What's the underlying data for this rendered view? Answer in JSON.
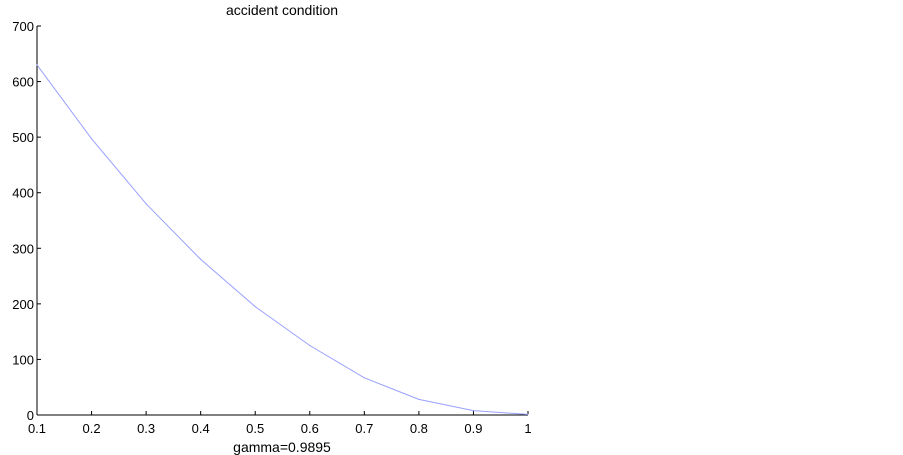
{
  "chart_data": {
    "type": "line",
    "title": "accident condition",
    "xlabel": "gamma=0.9895",
    "ylabel": "",
    "xlim": [
      0.1,
      1
    ],
    "ylim": [
      0,
      700
    ],
    "x_ticks": [
      "0.1",
      "0.2",
      "0.3",
      "0.4",
      "0.5",
      "0.6",
      "0.7",
      "0.8",
      "0.9",
      "1"
    ],
    "y_ticks": [
      "0",
      "100",
      "200",
      "300",
      "400",
      "500",
      "600",
      "700"
    ],
    "grid": false,
    "series": [
      {
        "color": "#9aa0ff",
        "x": [
          0.1,
          0.2,
          0.3,
          0.4,
          0.5,
          0.6,
          0.7,
          0.8,
          0.9,
          1.0
        ],
        "values": [
          630,
          497,
          380,
          280,
          195,
          125,
          67,
          28,
          8,
          1
        ]
      }
    ]
  }
}
